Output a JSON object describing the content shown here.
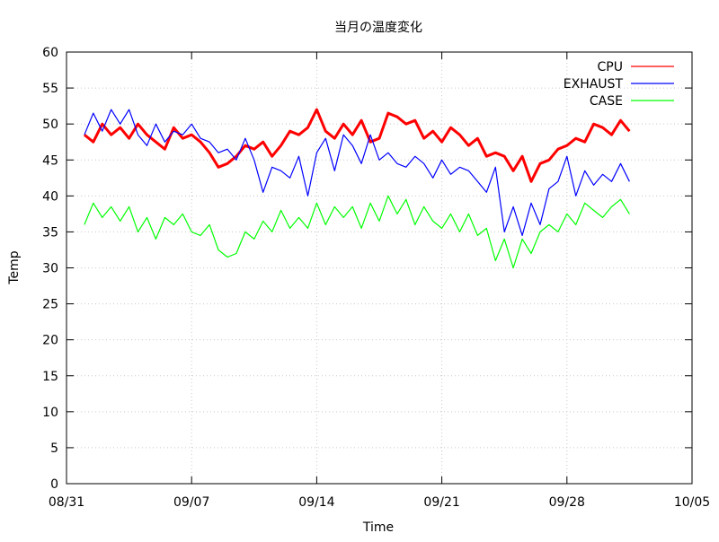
{
  "chart_data": {
    "type": "line",
    "title": "当月の温度変化",
    "xlabel": "Time",
    "ylabel": "Temp",
    "xlim": [
      "2019-08-31",
      "2019-10-05"
    ],
    "ylim": [
      0,
      60
    ],
    "x_ticks": [
      {
        "date": "2019-08-31",
        "label": "08/31"
      },
      {
        "date": "2019-09-07",
        "label": "09/07"
      },
      {
        "date": "2019-09-14",
        "label": "09/14"
      },
      {
        "date": "2019-09-21",
        "label": "09/21"
      },
      {
        "date": "2019-09-28",
        "label": "09/28"
      },
      {
        "date": "2019-10-05",
        "label": "10/05"
      }
    ],
    "y_ticks": [
      "0",
      "5",
      "10",
      "15",
      "20",
      "25",
      "30",
      "35",
      "40",
      "45",
      "50",
      "55",
      "60"
    ],
    "grid": true,
    "legend_placement": "top-right",
    "series": [
      {
        "name": "CPU",
        "color": "#ff0000",
        "points": [
          [
            "2019-09-01",
            48.5
          ],
          [
            "2019-09-01 12:00",
            47.5
          ],
          [
            "2019-09-02",
            50.0
          ],
          [
            "2019-09-02 12:00",
            48.5
          ],
          [
            "2019-09-03",
            49.5
          ],
          [
            "2019-09-03 12:00",
            48.0
          ],
          [
            "2019-09-04",
            50.0
          ],
          [
            "2019-09-04 12:00",
            48.5
          ],
          [
            "2019-09-05",
            47.5
          ],
          [
            "2019-09-05 12:00",
            46.5
          ],
          [
            "2019-09-06",
            49.5
          ],
          [
            "2019-09-06 12:00",
            48.0
          ],
          [
            "2019-09-07",
            48.5
          ],
          [
            "2019-09-07 12:00",
            47.5
          ],
          [
            "2019-09-08",
            46.0
          ],
          [
            "2019-09-08 12:00",
            44.0
          ],
          [
            "2019-09-09",
            44.5
          ],
          [
            "2019-09-09 12:00",
            45.5
          ],
          [
            "2019-09-10",
            47.0
          ],
          [
            "2019-09-10 12:00",
            46.5
          ],
          [
            "2019-09-11",
            47.5
          ],
          [
            "2019-09-11 12:00",
            45.5
          ],
          [
            "2019-09-12",
            47.0
          ],
          [
            "2019-09-12 12:00",
            49.0
          ],
          [
            "2019-09-13",
            48.5
          ],
          [
            "2019-09-13 12:00",
            49.5
          ],
          [
            "2019-09-14",
            52.0
          ],
          [
            "2019-09-14 12:00",
            49.0
          ],
          [
            "2019-09-15",
            48.0
          ],
          [
            "2019-09-15 12:00",
            50.0
          ],
          [
            "2019-09-16",
            48.5
          ],
          [
            "2019-09-16 12:00",
            50.5
          ],
          [
            "2019-09-17",
            47.5
          ],
          [
            "2019-09-17 12:00",
            48.0
          ],
          [
            "2019-09-18",
            51.5
          ],
          [
            "2019-09-18 12:00",
            51.0
          ],
          [
            "2019-09-19",
            50.0
          ],
          [
            "2019-09-19 12:00",
            50.5
          ],
          [
            "2019-09-20",
            48.0
          ],
          [
            "2019-09-20 12:00",
            49.0
          ],
          [
            "2019-09-21",
            47.5
          ],
          [
            "2019-09-21 12:00",
            49.5
          ],
          [
            "2019-09-22",
            48.5
          ],
          [
            "2019-09-22 12:00",
            47.0
          ],
          [
            "2019-09-23",
            48.0
          ],
          [
            "2019-09-23 12:00",
            45.5
          ],
          [
            "2019-09-24",
            46.0
          ],
          [
            "2019-09-24 12:00",
            45.5
          ],
          [
            "2019-09-25",
            43.5
          ],
          [
            "2019-09-25 12:00",
            45.5
          ],
          [
            "2019-09-26",
            42.0
          ],
          [
            "2019-09-26 12:00",
            44.5
          ],
          [
            "2019-09-27",
            45.0
          ],
          [
            "2019-09-27 12:00",
            46.5
          ],
          [
            "2019-09-28",
            47.0
          ],
          [
            "2019-09-28 12:00",
            48.0
          ],
          [
            "2019-09-29",
            47.5
          ],
          [
            "2019-09-29 12:00",
            50.0
          ],
          [
            "2019-09-30",
            49.5
          ],
          [
            "2019-09-30 12:00",
            48.5
          ],
          [
            "2019-10-01",
            50.5
          ],
          [
            "2019-10-01 12:00",
            49.0
          ]
        ]
      },
      {
        "name": "EXHAUST",
        "color": "#0000ff",
        "points": [
          [
            "2019-09-01",
            48.5
          ],
          [
            "2019-09-01 12:00",
            51.5
          ],
          [
            "2019-09-02",
            49.0
          ],
          [
            "2019-09-02 12:00",
            52.0
          ],
          [
            "2019-09-03",
            50.0
          ],
          [
            "2019-09-03 12:00",
            52.0
          ],
          [
            "2019-09-04",
            48.5
          ],
          [
            "2019-09-04 12:00",
            47.0
          ],
          [
            "2019-09-05",
            50.0
          ],
          [
            "2019-09-05 12:00",
            47.5
          ],
          [
            "2019-09-06",
            49.0
          ],
          [
            "2019-09-06 12:00",
            48.5
          ],
          [
            "2019-09-07",
            50.0
          ],
          [
            "2019-09-07 12:00",
            48.0
          ],
          [
            "2019-09-08",
            47.5
          ],
          [
            "2019-09-08 12:00",
            46.0
          ],
          [
            "2019-09-09",
            46.5
          ],
          [
            "2019-09-09 12:00",
            45.0
          ],
          [
            "2019-09-10",
            48.0
          ],
          [
            "2019-09-10 12:00",
            45.0
          ],
          [
            "2019-09-11",
            40.5
          ],
          [
            "2019-09-11 12:00",
            44.0
          ],
          [
            "2019-09-12",
            43.5
          ],
          [
            "2019-09-12 12:00",
            42.5
          ],
          [
            "2019-09-13",
            45.5
          ],
          [
            "2019-09-13 12:00",
            40.0
          ],
          [
            "2019-09-14",
            46.0
          ],
          [
            "2019-09-14 12:00",
            48.0
          ],
          [
            "2019-09-15",
            43.5
          ],
          [
            "2019-09-15 12:00",
            48.5
          ],
          [
            "2019-09-16",
            47.0
          ],
          [
            "2019-09-16 12:00",
            44.5
          ],
          [
            "2019-09-17",
            48.5
          ],
          [
            "2019-09-17 12:00",
            45.0
          ],
          [
            "2019-09-18",
            46.0
          ],
          [
            "2019-09-18 12:00",
            44.5
          ],
          [
            "2019-09-19",
            44.0
          ],
          [
            "2019-09-19 12:00",
            45.5
          ],
          [
            "2019-09-20",
            44.5
          ],
          [
            "2019-09-20 12:00",
            42.5
          ],
          [
            "2019-09-21",
            45.0
          ],
          [
            "2019-09-21 12:00",
            43.0
          ],
          [
            "2019-09-22",
            44.0
          ],
          [
            "2019-09-22 12:00",
            43.5
          ],
          [
            "2019-09-23",
            42.0
          ],
          [
            "2019-09-23 12:00",
            40.5
          ],
          [
            "2019-09-24",
            44.0
          ],
          [
            "2019-09-24 12:00",
            35.0
          ],
          [
            "2019-09-25",
            38.5
          ],
          [
            "2019-09-25 12:00",
            34.5
          ],
          [
            "2019-09-26",
            39.0
          ],
          [
            "2019-09-26 12:00",
            36.0
          ],
          [
            "2019-09-27",
            41.0
          ],
          [
            "2019-09-27 12:00",
            42.0
          ],
          [
            "2019-09-28",
            45.5
          ],
          [
            "2019-09-28 12:00",
            40.0
          ],
          [
            "2019-09-29",
            43.5
          ],
          [
            "2019-09-29 12:00",
            41.5
          ],
          [
            "2019-09-30",
            43.0
          ],
          [
            "2019-09-30 12:00",
            42.0
          ],
          [
            "2019-10-01",
            44.5
          ],
          [
            "2019-10-01 12:00",
            42.0
          ]
        ]
      },
      {
        "name": "CASE",
        "color": "#00ff00",
        "points": [
          [
            "2019-09-01",
            36.0
          ],
          [
            "2019-09-01 12:00",
            39.0
          ],
          [
            "2019-09-02",
            37.0
          ],
          [
            "2019-09-02 12:00",
            38.5
          ],
          [
            "2019-09-03",
            36.5
          ],
          [
            "2019-09-03 12:00",
            38.5
          ],
          [
            "2019-09-04",
            35.0
          ],
          [
            "2019-09-04 12:00",
            37.0
          ],
          [
            "2019-09-05",
            34.0
          ],
          [
            "2019-09-05 12:00",
            37.0
          ],
          [
            "2019-09-06",
            36.0
          ],
          [
            "2019-09-06 12:00",
            37.5
          ],
          [
            "2019-09-07",
            35.0
          ],
          [
            "2019-09-07 12:00",
            34.5
          ],
          [
            "2019-09-08",
            36.0
          ],
          [
            "2019-09-08 12:00",
            32.5
          ],
          [
            "2019-09-09",
            31.5
          ],
          [
            "2019-09-09 12:00",
            32.0
          ],
          [
            "2019-09-10",
            35.0
          ],
          [
            "2019-09-10 12:00",
            34.0
          ],
          [
            "2019-09-11",
            36.5
          ],
          [
            "2019-09-11 12:00",
            35.0
          ],
          [
            "2019-09-12",
            38.0
          ],
          [
            "2019-09-12 12:00",
            35.5
          ],
          [
            "2019-09-13",
            37.0
          ],
          [
            "2019-09-13 12:00",
            35.5
          ],
          [
            "2019-09-14",
            39.0
          ],
          [
            "2019-09-14 12:00",
            36.0
          ],
          [
            "2019-09-15",
            38.5
          ],
          [
            "2019-09-15 12:00",
            37.0
          ],
          [
            "2019-09-16",
            38.5
          ],
          [
            "2019-09-16 12:00",
            35.5
          ],
          [
            "2019-09-17",
            39.0
          ],
          [
            "2019-09-17 12:00",
            36.5
          ],
          [
            "2019-09-18",
            40.0
          ],
          [
            "2019-09-18 12:00",
            37.5
          ],
          [
            "2019-09-19",
            39.5
          ],
          [
            "2019-09-19 12:00",
            36.0
          ],
          [
            "2019-09-20",
            38.5
          ],
          [
            "2019-09-20 12:00",
            36.5
          ],
          [
            "2019-09-21",
            35.5
          ],
          [
            "2019-09-21 12:00",
            37.5
          ],
          [
            "2019-09-22",
            35.0
          ],
          [
            "2019-09-22 12:00",
            37.5
          ],
          [
            "2019-09-23",
            34.5
          ],
          [
            "2019-09-23 12:00",
            35.5
          ],
          [
            "2019-09-24",
            31.0
          ],
          [
            "2019-09-24 12:00",
            34.0
          ],
          [
            "2019-09-25",
            30.0
          ],
          [
            "2019-09-25 12:00",
            34.0
          ],
          [
            "2019-09-26",
            32.0
          ],
          [
            "2019-09-26 12:00",
            35.0
          ],
          [
            "2019-09-27",
            36.0
          ],
          [
            "2019-09-27 12:00",
            35.0
          ],
          [
            "2019-09-28",
            37.5
          ],
          [
            "2019-09-28 12:00",
            36.0
          ],
          [
            "2019-09-29",
            39.0
          ],
          [
            "2019-09-29 12:00",
            38.0
          ],
          [
            "2019-09-30",
            37.0
          ],
          [
            "2019-09-30 12:00",
            38.5
          ],
          [
            "2019-10-01",
            39.5
          ],
          [
            "2019-10-01 12:00",
            37.5
          ]
        ]
      }
    ]
  }
}
